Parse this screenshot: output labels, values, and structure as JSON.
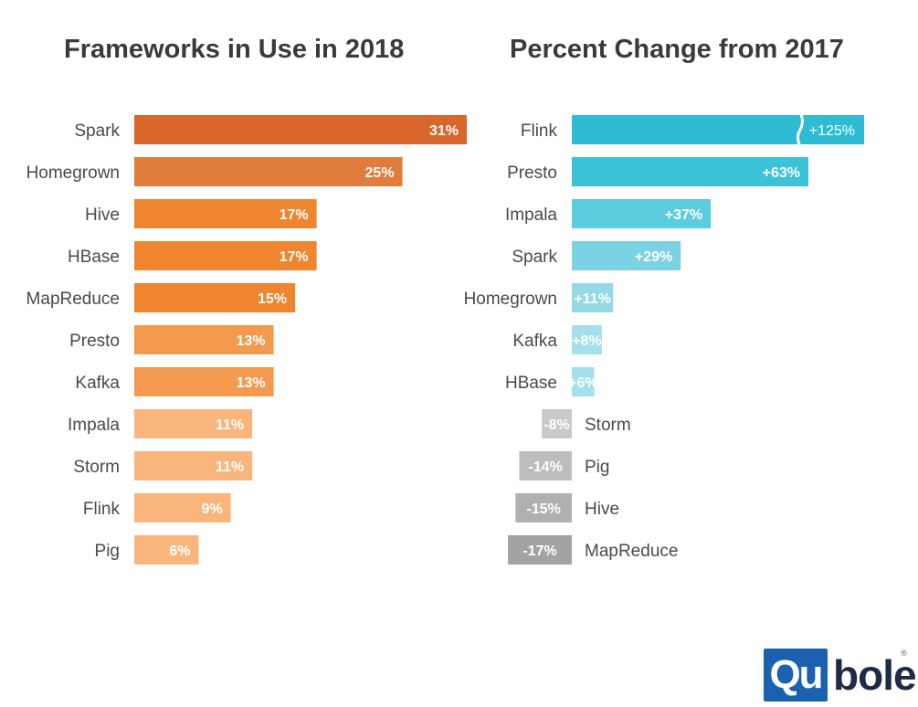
{
  "chart_data": [
    {
      "type": "bar",
      "orientation": "horizontal",
      "title": "Frameworks in Use in 2018",
      "categories": [
        "Spark",
        "Homegrown",
        "Hive",
        "HBase",
        "MapReduce",
        "Presto",
        "Kafka",
        "Impala",
        "Storm",
        "Flink",
        "Pig"
      ],
      "values": [
        31,
        25,
        17,
        17,
        15,
        13,
        13,
        11,
        11,
        9,
        6
      ],
      "value_labels": [
        "31%",
        "25%",
        "17%",
        "17%",
        "15%",
        "13%",
        "13%",
        "11%",
        "11%",
        "9%",
        "6%"
      ],
      "colors": [
        "#d9662a",
        "#e07c3c",
        "#f0852f",
        "#f0852f",
        "#f0852f",
        "#f39a4f",
        "#f39a4f",
        "#f9b57c",
        "#f9b57c",
        "#f9b57c",
        "#f9b57c"
      ],
      "grid": false,
      "legend": "none"
    },
    {
      "type": "bar",
      "orientation": "horizontal",
      "title": "Percent Change from 2017",
      "categories": [
        "Flink",
        "Presto",
        "Impala",
        "Spark",
        "Homegrown",
        "Kafka",
        "HBase",
        "Storm",
        "Pig",
        "Hive",
        "MapReduce"
      ],
      "values": [
        125,
        63,
        37,
        29,
        11,
        8,
        6,
        -8,
        -14,
        -15,
        -17
      ],
      "value_labels": [
        "+125%",
        "+63%",
        "+37%",
        "+29%",
        "+11%",
        "+8%",
        "+6%",
        "-8%",
        "-14%",
        "-15%",
        "-17%"
      ],
      "colors": [
        "#2ebcd4",
        "#3cc2d8",
        "#5cccdf",
        "#7bd2e3",
        "#93d9e8",
        "#a4dfec",
        "#a4dfec",
        "#c9c9c9",
        "#bdbdbd",
        "#b0b0b0",
        "#a3a3a3"
      ],
      "axis_break": "Flink",
      "grid": false,
      "legend": "none"
    }
  ],
  "logo": {
    "mark": "Qu",
    "word": "bole",
    "reg": "®"
  }
}
